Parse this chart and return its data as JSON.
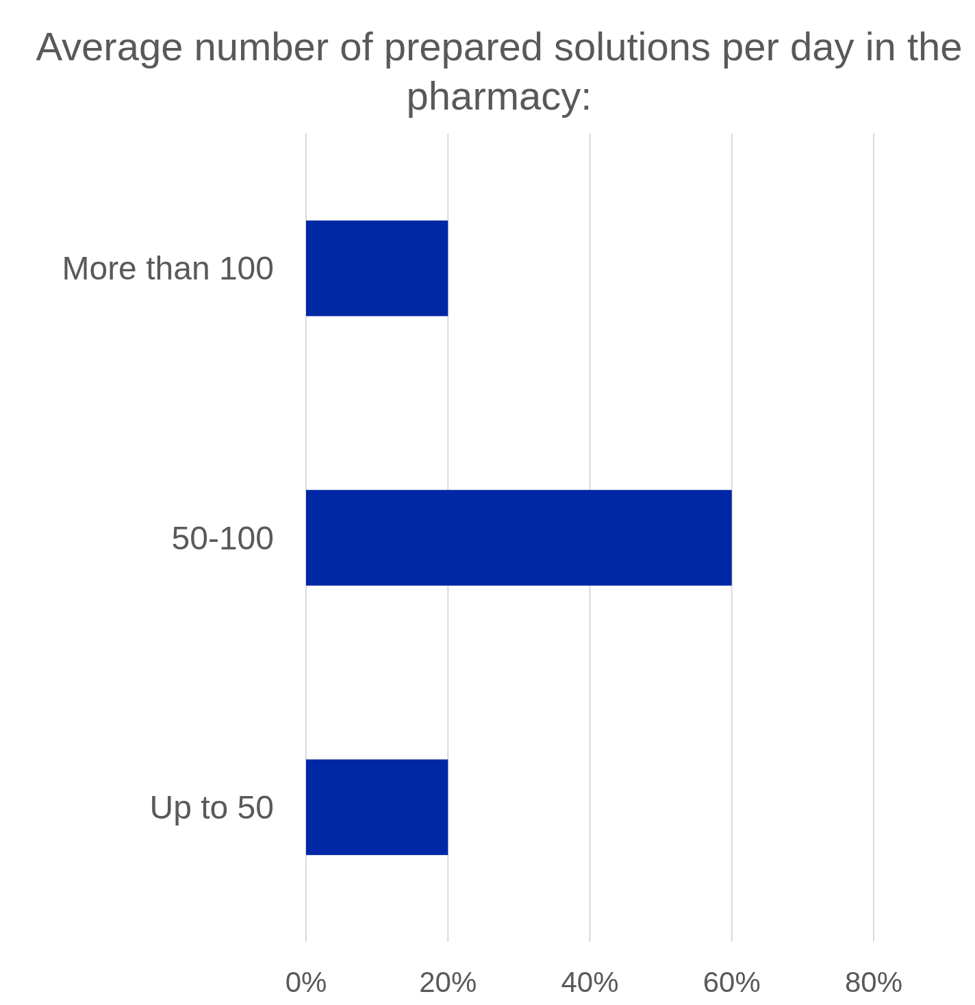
{
  "chart_data": {
    "type": "bar",
    "title": "Average number of prepared solutions per day in the pharmacy:",
    "orientation": "horizontal",
    "categories": [
      "More than 100",
      "50-100",
      "Up to 50"
    ],
    "values": [
      20,
      60,
      20
    ],
    "color": "#0027a5",
    "xlim": [
      0,
      80
    ],
    "xticks": [
      {
        "value": 0,
        "label": "0%"
      },
      {
        "value": 20,
        "label": "20%"
      },
      {
        "value": 40,
        "label": "40%"
      },
      {
        "value": 60,
        "label": "60%"
      },
      {
        "value": 80,
        "label": "80%"
      }
    ],
    "grid": "x"
  }
}
